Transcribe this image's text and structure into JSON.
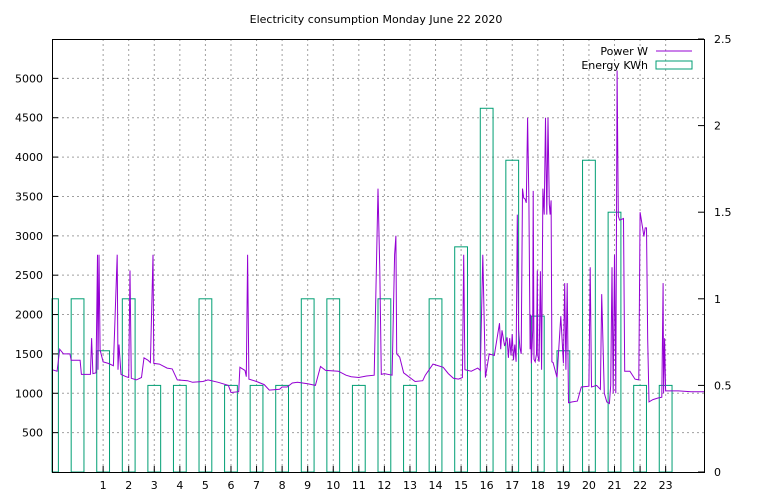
{
  "chart_data": {
    "type": "line",
    "title": "Electricity consumption Monday June 22 2020",
    "xlim": [
      -1,
      24.5
    ],
    "ylim": [
      0,
      5500
    ],
    "y2lim": [
      0,
      2.5
    ],
    "x_ticks": [
      "1",
      "2",
      "3",
      "4",
      "5",
      "6",
      "7",
      "8",
      "9",
      "10",
      "11",
      "12",
      "13",
      "14",
      "15",
      "16",
      "17",
      "18",
      "19",
      "20",
      "21",
      "22",
      "23"
    ],
    "y_ticks": [
      500,
      1000,
      1500,
      2000,
      2500,
      3000,
      3500,
      4000,
      4500,
      5000
    ],
    "y2_ticks": [
      0,
      0.5,
      1,
      1.5,
      2,
      2.5
    ],
    "y2_tick_labels": [
      "0",
      "0.5",
      "1",
      "1.5",
      "2",
      "2.5"
    ],
    "grid": true,
    "legend_position": "top-right",
    "colors": {
      "power": "#9400d3",
      "energy": "#009e73"
    },
    "series": [
      {
        "name": "Power W",
        "axis": "left",
        "style": "line",
        "points": [
          [
            -1.0,
            1300
          ],
          [
            -0.8,
            1280
          ],
          [
            -0.7,
            1560
          ],
          [
            -0.55,
            1500
          ],
          [
            -0.3,
            1500
          ],
          [
            -0.25,
            1420
          ],
          [
            0.1,
            1420
          ],
          [
            0.15,
            1240
          ],
          [
            0.5,
            1240
          ],
          [
            0.55,
            1700
          ],
          [
            0.6,
            1250
          ],
          [
            0.72,
            1260
          ],
          [
            0.78,
            2760
          ],
          [
            0.8,
            1300
          ],
          [
            0.84,
            2760
          ],
          [
            0.88,
            1550
          ],
          [
            1.0,
            1400
          ],
          [
            1.2,
            1380
          ],
          [
            1.4,
            1350
          ],
          [
            1.55,
            2760
          ],
          [
            1.58,
            1300
          ],
          [
            1.62,
            1620
          ],
          [
            1.7,
            1240
          ],
          [
            1.9,
            1210
          ],
          [
            2.0,
            1200
          ],
          [
            2.05,
            2560
          ],
          [
            2.1,
            1190
          ],
          [
            2.3,
            1170
          ],
          [
            2.5,
            1200
          ],
          [
            2.6,
            1450
          ],
          [
            2.75,
            1420
          ],
          [
            2.85,
            1390
          ],
          [
            2.95,
            2760
          ],
          [
            2.98,
            1380
          ],
          [
            3.2,
            1370
          ],
          [
            3.5,
            1320
          ],
          [
            3.7,
            1310
          ],
          [
            3.9,
            1170
          ],
          [
            4.3,
            1160
          ],
          [
            4.5,
            1140
          ],
          [
            4.9,
            1150
          ],
          [
            5.1,
            1170
          ],
          [
            5.5,
            1140
          ],
          [
            5.9,
            1100
          ],
          [
            6.0,
            1010
          ],
          [
            6.3,
            1020
          ],
          [
            6.35,
            1330
          ],
          [
            6.55,
            1290
          ],
          [
            6.6,
            1210
          ],
          [
            6.65,
            2760
          ],
          [
            6.7,
            1180
          ],
          [
            7.0,
            1150
          ],
          [
            7.3,
            1110
          ],
          [
            7.5,
            1040
          ],
          [
            7.9,
            1050
          ],
          [
            8.0,
            1080
          ],
          [
            8.2,
            1080
          ],
          [
            8.4,
            1130
          ],
          [
            8.6,
            1140
          ],
          [
            9.0,
            1120
          ],
          [
            9.3,
            1100
          ],
          [
            9.5,
            1340
          ],
          [
            9.7,
            1290
          ],
          [
            10.2,
            1280
          ],
          [
            10.5,
            1230
          ],
          [
            10.7,
            1210
          ],
          [
            11.0,
            1200
          ],
          [
            11.3,
            1220
          ],
          [
            11.6,
            1230
          ],
          [
            11.75,
            3600
          ],
          [
            11.82,
            2560
          ],
          [
            11.88,
            1240
          ],
          [
            12.0,
            1250
          ],
          [
            12.3,
            1230
          ],
          [
            12.4,
            2760
          ],
          [
            12.45,
            3000
          ],
          [
            12.48,
            1500
          ],
          [
            12.6,
            1460
          ],
          [
            12.75,
            1260
          ],
          [
            13.2,
            1150
          ],
          [
            13.5,
            1160
          ],
          [
            13.6,
            1230
          ],
          [
            13.9,
            1370
          ],
          [
            14.3,
            1330
          ],
          [
            14.5,
            1250
          ],
          [
            14.7,
            1190
          ],
          [
            14.9,
            1180
          ],
          [
            15.05,
            1200
          ],
          [
            15.1,
            2760
          ],
          [
            15.15,
            1300
          ],
          [
            15.4,
            1280
          ],
          [
            15.65,
            1320
          ],
          [
            15.75,
            1290
          ],
          [
            15.85,
            2760
          ],
          [
            15.95,
            1200
          ],
          [
            16.1,
            1500
          ],
          [
            16.3,
            1480
          ],
          [
            16.5,
            1890
          ],
          [
            16.55,
            1560
          ],
          [
            16.6,
            1800
          ],
          [
            16.7,
            1600
          ],
          [
            16.8,
            1710
          ],
          [
            16.85,
            1450
          ],
          [
            16.9,
            1700
          ],
          [
            16.95,
            1480
          ],
          [
            17.0,
            1750
          ],
          [
            17.05,
            1420
          ],
          [
            17.1,
            1620
          ],
          [
            17.15,
            1400
          ],
          [
            17.2,
            3270
          ],
          [
            17.25,
            1800
          ],
          [
            17.3,
            1580
          ],
          [
            17.35,
            1500
          ],
          [
            17.4,
            3600
          ],
          [
            17.45,
            3480
          ],
          [
            17.5,
            3470
          ],
          [
            17.55,
            3420
          ],
          [
            17.6,
            4500
          ],
          [
            17.65,
            3440
          ],
          [
            17.7,
            1560
          ],
          [
            17.72,
            2000
          ],
          [
            17.75,
            1380
          ],
          [
            17.8,
            1800
          ],
          [
            17.82,
            3570
          ],
          [
            17.85,
            1430
          ],
          [
            17.9,
            1400
          ],
          [
            17.95,
            1500
          ],
          [
            17.98,
            2560
          ],
          [
            18.0,
            1480
          ],
          [
            18.05,
            1400
          ],
          [
            18.1,
            2550
          ],
          [
            18.15,
            1300
          ],
          [
            18.2,
            3600
          ],
          [
            18.25,
            3270
          ],
          [
            18.3,
            4500
          ],
          [
            18.35,
            3270
          ],
          [
            18.4,
            4500
          ],
          [
            18.45,
            3400
          ],
          [
            18.48,
            3270
          ],
          [
            18.52,
            3450
          ],
          [
            18.55,
            1400
          ],
          [
            18.6,
            1390
          ],
          [
            18.75,
            1200
          ],
          [
            18.9,
            1980
          ],
          [
            19.0,
            1380
          ],
          [
            19.05,
            2400
          ],
          [
            19.1,
            1300
          ],
          [
            19.15,
            2400
          ],
          [
            19.2,
            880
          ],
          [
            19.35,
            890
          ],
          [
            19.55,
            900
          ],
          [
            19.7,
            1080
          ],
          [
            20.0,
            1090
          ],
          [
            20.05,
            2600
          ],
          [
            20.1,
            1080
          ],
          [
            20.3,
            1100
          ],
          [
            20.45,
            1050
          ],
          [
            20.5,
            2260
          ],
          [
            20.6,
            1000
          ],
          [
            20.7,
            890
          ],
          [
            20.8,
            870
          ],
          [
            20.85,
            1100
          ],
          [
            20.9,
            2600
          ],
          [
            20.95,
            1000
          ],
          [
            21.0,
            2760
          ],
          [
            21.05,
            1000
          ],
          [
            21.1,
            5100
          ],
          [
            21.15,
            3250
          ],
          [
            21.2,
            3200
          ],
          [
            21.35,
            3220
          ],
          [
            21.4,
            1280
          ],
          [
            21.6,
            1280
          ],
          [
            21.8,
            1180
          ],
          [
            21.95,
            1170
          ],
          [
            22.0,
            3300
          ],
          [
            22.1,
            3100
          ],
          [
            22.15,
            2990
          ],
          [
            22.2,
            3100
          ],
          [
            22.25,
            3100
          ],
          [
            22.3,
            1680
          ],
          [
            22.35,
            890
          ],
          [
            22.5,
            920
          ],
          [
            22.7,
            940
          ],
          [
            22.85,
            950
          ],
          [
            22.9,
            2400
          ],
          [
            22.92,
            1000
          ],
          [
            22.96,
            1700
          ],
          [
            23.0,
            1030
          ],
          [
            23.3,
            1030
          ],
          [
            23.5,
            1030
          ],
          [
            24.0,
            1020
          ],
          [
            24.5,
            1020
          ]
        ]
      },
      {
        "name": "Energy KWh",
        "axis": "right",
        "style": "impulse-box",
        "box_width": 0.5,
        "x": [
          -1,
          0,
          1,
          2,
          3,
          4,
          5,
          6,
          7,
          8,
          9,
          10,
          11,
          12,
          13,
          14,
          15,
          16,
          17,
          18,
          19,
          20,
          21,
          22,
          23
        ],
        "values": [
          1.0,
          1.0,
          0.7,
          1.0,
          0.5,
          0.5,
          1.0,
          0.5,
          0.5,
          0.5,
          1.0,
          1.0,
          0.5,
          1.0,
          0.5,
          1.0,
          1.3,
          2.1,
          1.8,
          0.9,
          0.7,
          1.8,
          1.5,
          0.5,
          0.5
        ]
      }
    ]
  }
}
